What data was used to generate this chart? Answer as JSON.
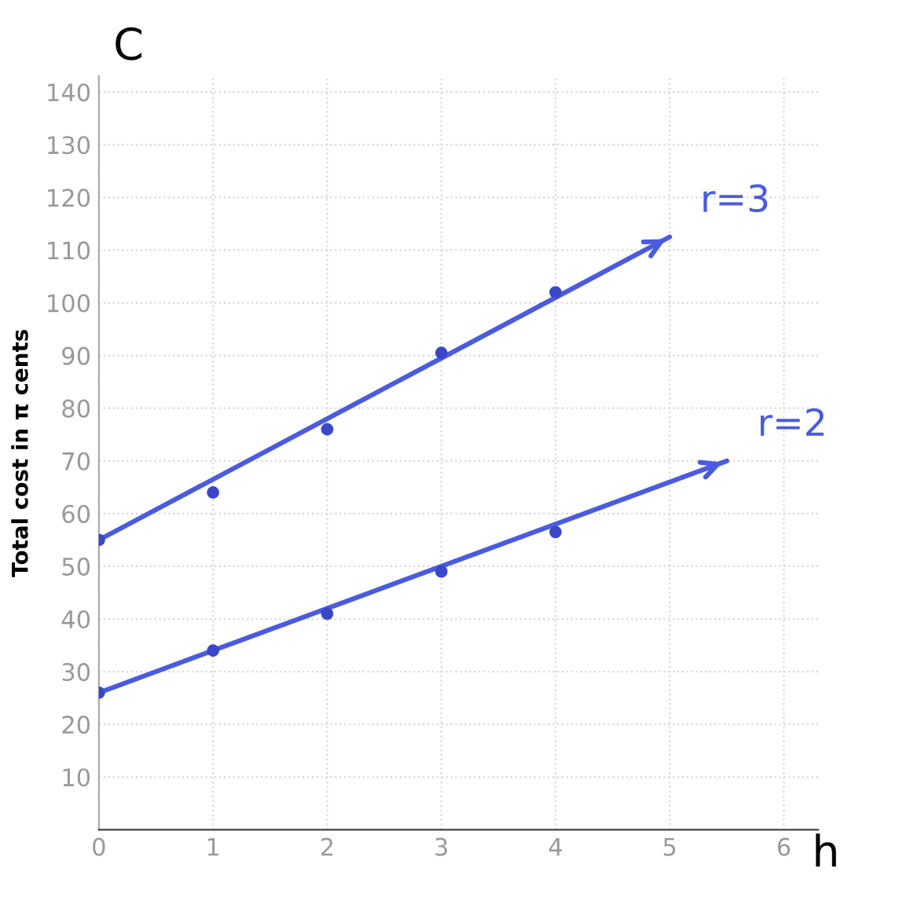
{
  "chart_data": {
    "type": "line",
    "xlabel": "h",
    "ylabel": "Total cost in π cents",
    "annotations": [
      "C"
    ],
    "xlim": [
      0,
      6.3
    ],
    "ylim": [
      0,
      143
    ],
    "xticks": [
      0,
      1,
      2,
      3,
      4,
      5,
      6
    ],
    "yticks": [
      10,
      20,
      30,
      40,
      50,
      60,
      70,
      80,
      90,
      100,
      110,
      120,
      130,
      140
    ],
    "grid": true,
    "series": [
      {
        "type": "scatter",
        "marker": "circle",
        "color": "#3a48c8",
        "x": [
          0,
          1,
          2,
          3,
          4
        ],
        "values": [
          55,
          64,
          76,
          90.5,
          102
        ]
      },
      {
        "type": "scatter",
        "marker": "circle",
        "color": "#3a48c8",
        "x": [
          0,
          1,
          2,
          3,
          4
        ],
        "values": [
          26,
          34,
          41,
          49,
          56.5
        ]
      },
      {
        "marker": "none",
        "name": "r=3",
        "color": "#4a5be0",
        "x": [
          0,
          5
        ],
        "values": [
          55,
          112.5
        ]
      },
      {
        "marker": "none",
        "name": "r=2",
        "color": "#4a5be0",
        "x": [
          0,
          5.5
        ],
        "values": [
          26,
          70
        ]
      }
    ]
  }
}
